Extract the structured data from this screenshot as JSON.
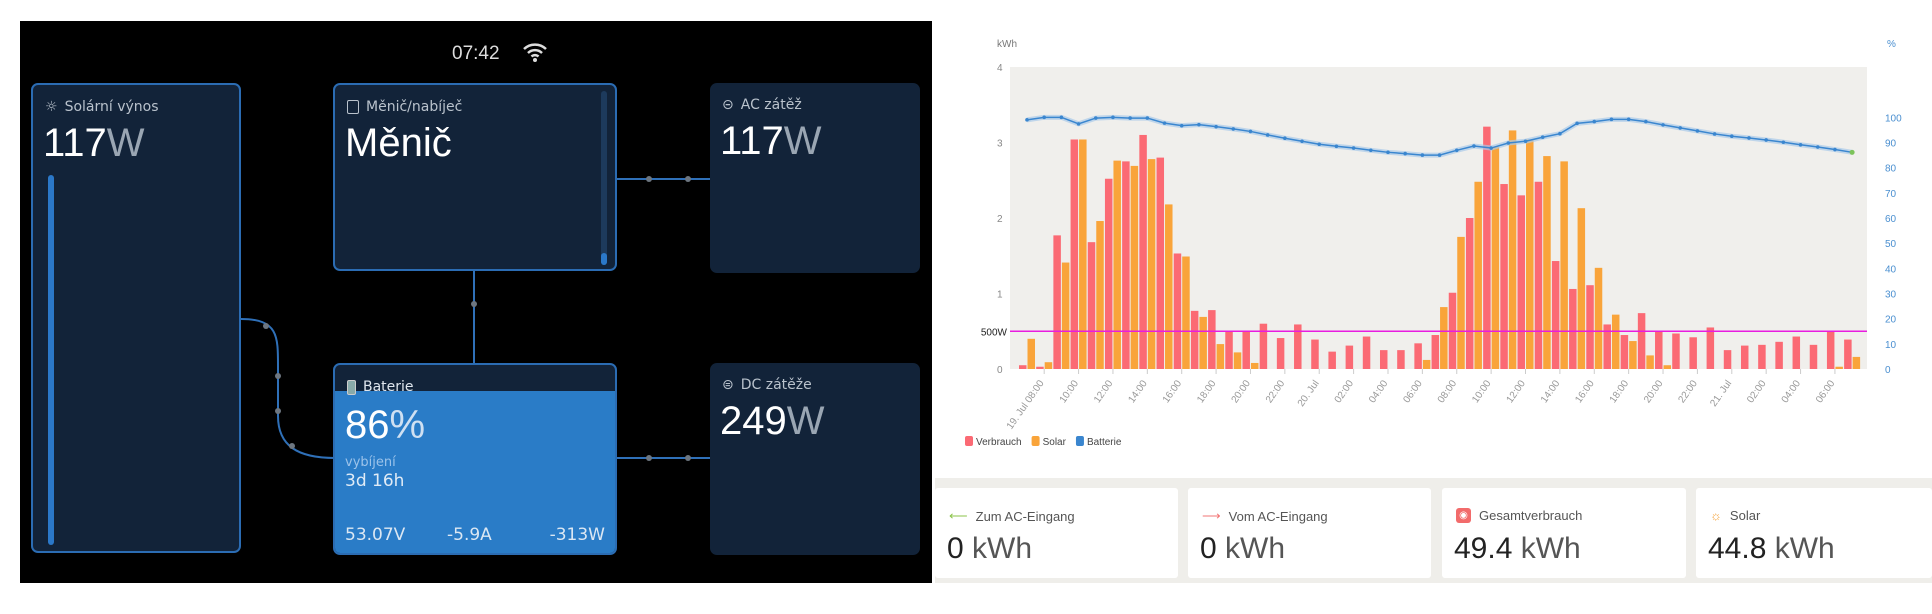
{
  "status_bar": {
    "time": "07:42",
    "wifi_icon": "wifi-icon"
  },
  "boxes": {
    "solar": {
      "title": "Solární výnos",
      "value": "117",
      "unit": "W",
      "level": 1.0
    },
    "inverter": {
      "title": "Měnič/nabíječ",
      "value": "Měnič"
    },
    "ac_load": {
      "title": "AC zátěž",
      "value": "117",
      "unit": "W"
    },
    "battery": {
      "title": "Baterie",
      "value": "86",
      "unit": "%",
      "state": "vybíjení",
      "time_left": "3d 16h",
      "voltage": "53.07V",
      "current": "-5.9A",
      "power": "-313W",
      "level": 86
    },
    "dc_load": {
      "title": "DC zátěže",
      "value": "249",
      "unit": "W"
    }
  },
  "summary_cards": [
    {
      "icon": "arrow-left-icon",
      "label": "Zum AC-Eingang",
      "value": "0",
      "unit": "kWh",
      "color": "#8bc34a"
    },
    {
      "icon": "arrow-right-icon",
      "label": "Vom AC-Eingang",
      "value": "0",
      "unit": "kWh",
      "color": "#f27474"
    },
    {
      "icon": "socket-icon",
      "label": "Gesamtverbrauch",
      "value": "49.4",
      "unit": "kWh",
      "color": "#f26b6b"
    },
    {
      "icon": "sun-icon",
      "label": "Solar",
      "value": "44.8",
      "unit": "kWh",
      "color": "#f5a33a"
    }
  ],
  "chart_data": {
    "type": "bar",
    "ylabel_left": "kWh",
    "ylabel_right": "%",
    "ylim_left": [
      0,
      4
    ],
    "yticks_left": [
      "0",
      "1",
      "2",
      "3",
      "4"
    ],
    "ylim_right": [
      0,
      120
    ],
    "yticks_right": [
      "0",
      "10",
      "20",
      "30",
      "40",
      "50",
      "60",
      "70",
      "80",
      "90",
      "100"
    ],
    "threshold": {
      "label": "500W",
      "value": 0.5,
      "color": "#e81ce0"
    },
    "grid": false,
    "legend": "bottom-left",
    "x_tick_labels": [
      "19. Jul 08:00",
      "10:00",
      "12:00",
      "14:00",
      "16:00",
      "18:00",
      "20:00",
      "22:00",
      "20. Jul",
      "02:00",
      "04:00",
      "06:00",
      "08:00",
      "10:00",
      "12:00",
      "14:00",
      "16:00",
      "18:00",
      "20:00",
      "22:00",
      "21. Jul",
      "02:00",
      "04:00",
      "06:00"
    ],
    "series": [
      {
        "name": "Verbrauch",
        "type": "bar",
        "axis": "left",
        "color": "#fb6a74",
        "values": [
          0.05,
          0.03,
          1.77,
          3.04,
          1.68,
          2.52,
          2.75,
          3.1,
          2.8,
          1.53,
          0.77,
          0.78,
          0.49,
          0.51,
          0.6,
          0.41,
          0.59,
          0.39,
          0.23,
          0.31,
          0.43,
          0.25,
          0.25,
          0.34,
          0.45,
          1.01,
          2.0,
          3.21,
          2.45,
          2.3,
          2.48,
          1.43,
          1.06,
          1.11,
          0.59,
          0.45,
          0.74,
          0.49,
          0.47,
          0.42,
          0.55,
          0.25,
          0.31,
          0.32,
          0.36,
          0.43,
          0.32,
          0.5,
          0.39
        ]
      },
      {
        "name": "Solar",
        "type": "bar",
        "axis": "left",
        "color": "#f9a43a",
        "values": [
          0.4,
          0.09,
          1.41,
          3.04,
          1.96,
          2.76,
          2.69,
          2.78,
          2.18,
          1.49,
          0.69,
          0.33,
          0.22,
          0.08,
          0,
          0,
          0,
          0,
          0,
          0,
          0,
          0,
          0,
          0.12,
          0.82,
          1.75,
          2.48,
          2.94,
          3.16,
          3.04,
          2.82,
          2.75,
          2.13,
          1.34,
          0.72,
          0.37,
          0.18,
          0.05,
          0,
          0,
          0,
          0,
          0,
          0,
          0,
          0,
          0,
          0.03,
          0.16
        ]
      },
      {
        "name": "Batterie",
        "type": "line",
        "axis": "right",
        "color": "#3a86cf",
        "values": [
          99,
          100,
          100,
          97.4,
          99.7,
          100,
          99.7,
          99.7,
          97.7,
          96.7,
          97.1,
          96.3,
          95.4,
          94.4,
          93,
          91.7,
          90.5,
          89.3,
          88.5,
          87.8,
          86.9,
          86.1,
          85.6,
          85,
          85,
          86.9,
          88.6,
          87.8,
          89.8,
          90.5,
          92.1,
          93.5,
          97.6,
          98.3,
          99.2,
          99.2,
          98.3,
          97,
          95.8,
          94.6,
          93.4,
          92.5,
          91.8,
          91,
          90.1,
          89.1,
          88.2,
          87.2,
          86.1
        ]
      }
    ]
  }
}
